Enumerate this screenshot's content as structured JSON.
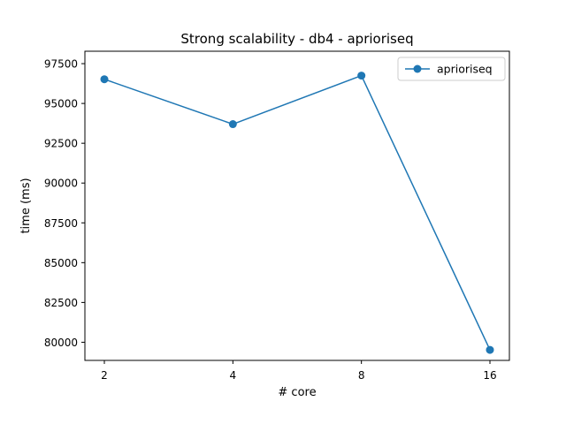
{
  "chart_data": {
    "type": "line",
    "title": "Strong scalability - db4 - aprioriseq",
    "xlabel": "# core",
    "ylabel": "time (ms)",
    "categories": [
      "2",
      "4",
      "8",
      "16"
    ],
    "series": [
      {
        "name": "aprioriseq",
        "color": "#1f77b4",
        "marker": "circle",
        "values": [
          96520,
          93700,
          96750,
          79520
        ]
      }
    ],
    "y_ticks": [
      80000,
      82500,
      85000,
      87500,
      90000,
      92500,
      95000,
      97500
    ],
    "ylim": [
      78860,
      98280
    ],
    "grid": false,
    "legend_position": "top-right"
  }
}
